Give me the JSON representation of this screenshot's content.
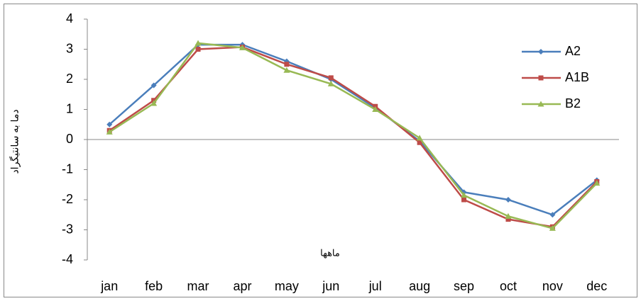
{
  "chart_data": {
    "type": "line",
    "y_label": "دما به سانتیگراد",
    "x_label": "ماهها",
    "categories": [
      "jan",
      "feb",
      "mar",
      "apr",
      "may",
      "jun",
      "jul",
      "aug",
      "sep",
      "oct",
      "nov",
      "dec"
    ],
    "series": [
      {
        "name": "A2",
        "color": "#4a7ebb",
        "marker": "diamond",
        "values": [
          0.5,
          1.8,
          3.15,
          3.15,
          2.6,
          2.0,
          1.05,
          -0.05,
          -1.75,
          -2.0,
          -2.5,
          -1.35
        ]
      },
      {
        "name": "A1B",
        "color": "#be4b48",
        "marker": "square",
        "values": [
          0.3,
          1.3,
          3.0,
          3.07,
          2.5,
          2.05,
          1.1,
          -0.1,
          -2.0,
          -2.65,
          -2.9,
          -1.4
        ]
      },
      {
        "name": "B2",
        "color": "#98b954",
        "marker": "triangle",
        "values": [
          0.25,
          1.2,
          3.2,
          3.05,
          2.3,
          1.85,
          1.0,
          0.05,
          -1.85,
          -2.55,
          -2.95,
          -1.45
        ]
      }
    ],
    "ylim": [
      -4,
      4
    ],
    "yticks": [
      -4,
      -3,
      -2,
      -1,
      0,
      1,
      2,
      3,
      4
    ],
    "legend": "right"
  }
}
